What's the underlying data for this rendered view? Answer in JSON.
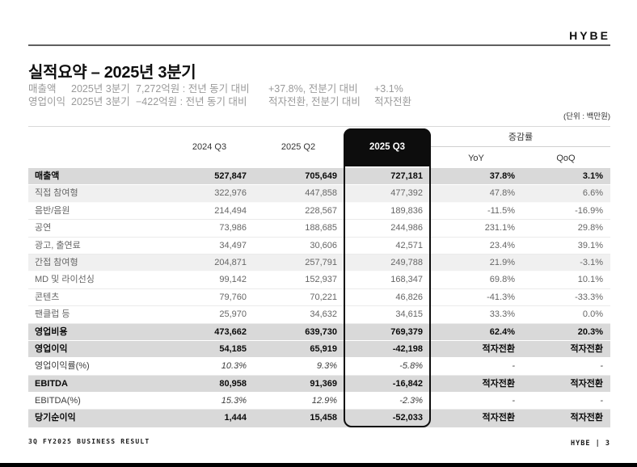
{
  "brand": {
    "logo": "HYBE"
  },
  "header": {
    "title": "실적요약 – 2025년 3분기",
    "unit_note": "(단위 : 백만원)"
  },
  "summary": [
    {
      "label": "매출액",
      "period": "2025년 3분기",
      "amount": "7,272억원 : 전년 동기 대비",
      "yoy_part": "+37.8%, 전분기 대비",
      "qoq_part": "+3.1%"
    },
    {
      "label": "영업이익",
      "period": "2025년 3분기",
      "amount": "−422억원 : 전년 동기 대비",
      "yoy_part": "적자전환, 전분기 대비",
      "qoq_part": "적자전환"
    }
  ],
  "table": {
    "columns": [
      "2024 Q3",
      "2025 Q2",
      "2025 Q3"
    ],
    "change_group_label": "증감률",
    "change_columns": [
      "YoY",
      "QoQ"
    ],
    "highlight_column": "2025 Q3",
    "rows": [
      {
        "label": "매출액",
        "v1": "527,847",
        "v2": "705,649",
        "v3": "727,181",
        "yoy": "37.8%",
        "qoq": "3.1%",
        "style": "total"
      },
      {
        "label": "직접 참여형",
        "v1": "322,976",
        "v2": "447,858",
        "v3": "477,392",
        "yoy": "47.8%",
        "qoq": "6.6%",
        "style": "subtotal"
      },
      {
        "label": "음반/음원",
        "v1": "214,494",
        "v2": "228,567",
        "v3": "189,836",
        "yoy": "-11.5%",
        "qoq": "-16.9%",
        "style": "item"
      },
      {
        "label": "공연",
        "v1": "73,986",
        "v2": "188,685",
        "v3": "244,986",
        "yoy": "231.1%",
        "qoq": "29.8%",
        "style": "item"
      },
      {
        "label": "광고, 출연료",
        "v1": "34,497",
        "v2": "30,606",
        "v3": "42,571",
        "yoy": "23.4%",
        "qoq": "39.1%",
        "style": "item"
      },
      {
        "label": "간접 참여형",
        "v1": "204,871",
        "v2": "257,791",
        "v3": "249,788",
        "yoy": "21.9%",
        "qoq": "-3.1%",
        "style": "subtotal"
      },
      {
        "label": "MD 및 라이선싱",
        "v1": "99,142",
        "v2": "152,937",
        "v3": "168,347",
        "yoy": "69.8%",
        "qoq": "10.1%",
        "style": "item"
      },
      {
        "label": "콘텐츠",
        "v1": "79,760",
        "v2": "70,221",
        "v3": "46,826",
        "yoy": "-41.3%",
        "qoq": "-33.3%",
        "style": "item"
      },
      {
        "label": "팬클럽 등",
        "v1": "25,970",
        "v2": "34,632",
        "v3": "34,615",
        "yoy": "33.3%",
        "qoq": "0.0%",
        "style": "item"
      },
      {
        "label": "영업비용",
        "v1": "473,662",
        "v2": "639,730",
        "v3": "769,379",
        "yoy": "62.4%",
        "qoq": "20.3%",
        "style": "total"
      },
      {
        "label": "영업이익",
        "v1": "54,185",
        "v2": "65,919",
        "v3": "-42,198",
        "yoy": "적자전환",
        "qoq": "적자전환",
        "style": "total"
      },
      {
        "label": "영업이익률(%)",
        "v1": "10.3%",
        "v2": "9.3%",
        "v3": "-5.8%",
        "yoy": "-",
        "qoq": "-",
        "style": "pct"
      },
      {
        "label": "EBITDA",
        "v1": "80,958",
        "v2": "91,369",
        "v3": "-16,842",
        "yoy": "적자전환",
        "qoq": "적자전환",
        "style": "total"
      },
      {
        "label": "EBITDA(%)",
        "v1": "15.3%",
        "v2": "12.9%",
        "v3": "-2.3%",
        "yoy": "-",
        "qoq": "-",
        "style": "pct"
      },
      {
        "label": "당기순이익",
        "v1": "1,444",
        "v2": "15,458",
        "v3": "-52,033",
        "yoy": "적자전환",
        "qoq": "적자전환",
        "style": "total"
      }
    ]
  },
  "footer": {
    "left_text": "3Q FY2025 BUSINESS RESULT",
    "right_text": "HYBE | 3"
  }
}
